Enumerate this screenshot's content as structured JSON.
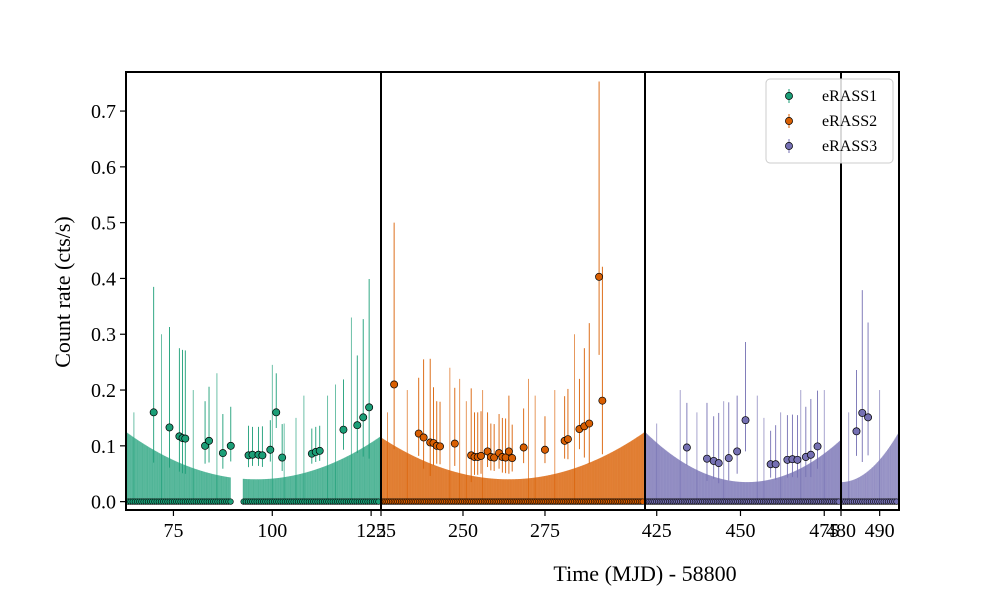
{
  "chart_data": {
    "type": "scatter",
    "ylabel": "Count rate (cts/s)",
    "xlabel": "Time (MJD) - 58800",
    "ylim": [
      -0.015,
      0.77
    ],
    "y_ticks": [
      0.0,
      0.1,
      0.2,
      0.3,
      0.4,
      0.5,
      0.6,
      0.7
    ],
    "y_tick_labels": [
      "0.0",
      "0.1",
      "0.2",
      "0.3",
      "0.4",
      "0.5",
      "0.6",
      "0.7"
    ],
    "legend_position": "top-right",
    "panels": [
      {
        "name": "eRASS1",
        "color": "#1b9e77",
        "xlim": [
          63,
          127.5
        ],
        "x_ticks": [
          75,
          100,
          125
        ],
        "x_tick_labels": [
          "75",
          "100",
          "125"
        ],
        "gaps": [
          [
            89.5,
            92.5
          ]
        ],
        "bar_envelope": {
          "center": 96,
          "min": 0.04,
          "max": 0.125
        },
        "detections": [
          {
            "x": 70.0,
            "y": 0.16,
            "err": 0.225
          },
          {
            "x": 74.0,
            "y": 0.133,
            "err": 0.18
          },
          {
            "x": 76.5,
            "y": 0.117,
            "err": 0.158
          },
          {
            "x": 77.3,
            "y": 0.114,
            "err": 0.158
          },
          {
            "x": 78.0,
            "y": 0.113,
            "err": 0.158
          },
          {
            "x": 83.0,
            "y": 0.1,
            "err": 0.08
          },
          {
            "x": 84.0,
            "y": 0.109,
            "err": 0.097
          },
          {
            "x": 87.5,
            "y": 0.087,
            "err": 0.07
          },
          {
            "x": 89.5,
            "y": 0.1,
            "err": 0.07
          },
          {
            "x": 94.0,
            "y": 0.083,
            "err": 0.053
          },
          {
            "x": 95.0,
            "y": 0.084,
            "err": 0.05
          },
          {
            "x": 96.5,
            "y": 0.084,
            "err": 0.05
          },
          {
            "x": 97.5,
            "y": 0.083,
            "err": 0.052
          },
          {
            "x": 99.5,
            "y": 0.093,
            "err": 0.053
          },
          {
            "x": 101.0,
            "y": 0.16,
            "err": 0.07
          },
          {
            "x": 102.5,
            "y": 0.079,
            "err": 0.06
          },
          {
            "x": 110.0,
            "y": 0.086,
            "err": 0.045
          },
          {
            "x": 111.0,
            "y": 0.089,
            "err": 0.045
          },
          {
            "x": 112.0,
            "y": 0.091,
            "err": 0.045
          },
          {
            "x": 118.0,
            "y": 0.129,
            "err": 0.09
          },
          {
            "x": 121.5,
            "y": 0.137,
            "err": 0.125
          },
          {
            "x": 123.0,
            "y": 0.151,
            "err": 0.176
          },
          {
            "x": 124.5,
            "y": 0.169,
            "err": 0.23
          }
        ],
        "upper_limits": [
          [
            100,
            0.245
          ],
          [
            103,
            0.14
          ],
          [
            106,
            0.15
          ],
          [
            108,
            0.19
          ],
          [
            114,
            0.19
          ],
          [
            116,
            0.21
          ],
          [
            120,
            0.33
          ],
          [
            65,
            0.16
          ],
          [
            72,
            0.3
          ],
          [
            80,
            0.2
          ],
          [
            86,
            0.23
          ]
        ]
      },
      {
        "name": "eRASS2",
        "color": "#d95f02",
        "xlim": [
          225,
          305.5
        ],
        "x_ticks": [
          225,
          250,
          275
        ],
        "x_tick_labels": [
          "225",
          "250",
          "275"
        ],
        "gaps": [],
        "bar_envelope": {
          "center": 264,
          "min": 0.04,
          "max": 0.125
        },
        "detections": [
          {
            "x": 229.0,
            "y": 0.21,
            "err": 0.29
          },
          {
            "x": 236.5,
            "y": 0.122,
            "err": 0.1
          },
          {
            "x": 238.0,
            "y": 0.115,
            "err": 0.14
          },
          {
            "x": 240.0,
            "y": 0.106,
            "err": 0.15
          },
          {
            "x": 241.0,
            "y": 0.105,
            "err": 0.1
          },
          {
            "x": 242.0,
            "y": 0.1,
            "err": 0.08
          },
          {
            "x": 243.0,
            "y": 0.099,
            "err": 0.08
          },
          {
            "x": 247.5,
            "y": 0.104,
            "err": 0.1
          },
          {
            "x": 252.5,
            "y": 0.083,
            "err": 0.12
          },
          {
            "x": 253.5,
            "y": 0.08,
            "err": 0.08
          },
          {
            "x": 254.5,
            "y": 0.08,
            "err": 0.08
          },
          {
            "x": 255.5,
            "y": 0.082,
            "err": 0.08
          },
          {
            "x": 257.5,
            "y": 0.09,
            "err": 0.07
          },
          {
            "x": 258.5,
            "y": 0.08,
            "err": 0.06
          },
          {
            "x": 259.5,
            "y": 0.079,
            "err": 0.06
          },
          {
            "x": 261.0,
            "y": 0.087,
            "err": 0.07
          },
          {
            "x": 262.0,
            "y": 0.08,
            "err": 0.07
          },
          {
            "x": 263.0,
            "y": 0.079,
            "err": 0.07
          },
          {
            "x": 264.0,
            "y": 0.09,
            "err": 0.1
          },
          {
            "x": 265.0,
            "y": 0.078,
            "err": 0.06
          },
          {
            "x": 268.5,
            "y": 0.097,
            "err": 0.07
          },
          {
            "x": 275.0,
            "y": 0.093,
            "err": 0.06
          },
          {
            "x": 281.0,
            "y": 0.109,
            "err": 0.08
          },
          {
            "x": 282.0,
            "y": 0.112,
            "err": 0.09
          },
          {
            "x": 285.5,
            "y": 0.13,
            "err": 0.09
          },
          {
            "x": 287.0,
            "y": 0.135,
            "err": 0.14
          },
          {
            "x": 288.5,
            "y": 0.14,
            "err": 0.18
          },
          {
            "x": 291.5,
            "y": 0.403,
            "err": 0.35
          },
          {
            "x": 292.5,
            "y": 0.181,
            "err": 0.24
          }
        ],
        "upper_limits": [
          [
            246,
            0.24
          ],
          [
            249,
            0.22
          ],
          [
            251,
            0.18
          ],
          [
            256,
            0.2
          ],
          [
            270,
            0.22
          ],
          [
            272,
            0.19
          ],
          [
            278,
            0.2
          ],
          [
            284,
            0.3
          ],
          [
            227,
            0.16
          ],
          [
            233,
            0.2
          ]
        ]
      },
      {
        "name": "eRASS3",
        "color": "#7570b3",
        "xlim": [
          421.5,
          480
        ],
        "x_ticks": [
          425,
          450,
          475
        ],
        "x_tick_labels": [
          "425",
          "450",
          "475"
        ],
        "gaps": [],
        "bar_envelope": {
          "center": 452,
          "min": 0.035,
          "max": 0.125
        },
        "detections": [
          {
            "x": 434.0,
            "y": 0.097,
            "err": 0.08
          },
          {
            "x": 440.0,
            "y": 0.077,
            "err": 0.1
          },
          {
            "x": 442.0,
            "y": 0.073,
            "err": 0.08
          },
          {
            "x": 443.5,
            "y": 0.069,
            "err": 0.09
          },
          {
            "x": 446.5,
            "y": 0.078,
            "err": 0.1
          },
          {
            "x": 449.0,
            "y": 0.09,
            "err": 0.1
          },
          {
            "x": 451.5,
            "y": 0.146,
            "err": 0.14
          },
          {
            "x": 459.0,
            "y": 0.067,
            "err": 0.06
          },
          {
            "x": 460.5,
            "y": 0.067,
            "err": 0.07
          },
          {
            "x": 464.0,
            "y": 0.075,
            "err": 0.08
          },
          {
            "x": 465.5,
            "y": 0.076,
            "err": 0.08
          },
          {
            "x": 467.0,
            "y": 0.075,
            "err": 0.08
          },
          {
            "x": 469.5,
            "y": 0.08,
            "err": 0.09
          },
          {
            "x": 471.0,
            "y": 0.084,
            "err": 0.1
          },
          {
            "x": 473.0,
            "y": 0.099,
            "err": 0.1
          }
        ],
        "upper_limits": [
          [
            425,
            0.14
          ],
          [
            432,
            0.2
          ],
          [
            437,
            0.16
          ],
          [
            445,
            0.18
          ],
          [
            455,
            0.19
          ],
          [
            457,
            0.15
          ],
          [
            462,
            0.16
          ],
          [
            468,
            0.2
          ],
          [
            475,
            0.2
          ]
        ]
      },
      {
        "name": "eRASS3-continued",
        "color": "#7570b3",
        "xlim": [
          480,
          495
        ],
        "x_ticks": [
          480,
          490
        ],
        "x_tick_labels": [
          "480",
          "490"
        ],
        "gaps": [],
        "bar_envelope": {
          "center": 480,
          "min": 0.035,
          "max": 0.125
        },
        "detections": [
          {
            "x": 484.0,
            "y": 0.126,
            "err": 0.11
          },
          {
            "x": 485.5,
            "y": 0.159,
            "err": 0.22
          },
          {
            "x": 487.0,
            "y": 0.151,
            "err": 0.17
          }
        ],
        "upper_limits": [
          [
            482,
            0.16
          ],
          [
            490,
            0.2
          ]
        ]
      }
    ],
    "legend": [
      {
        "label": "eRASS1",
        "color": "#1b9e77"
      },
      {
        "label": "eRASS2",
        "color": "#d95f02"
      },
      {
        "label": "eRASS3",
        "color": "#7570b3"
      }
    ]
  }
}
